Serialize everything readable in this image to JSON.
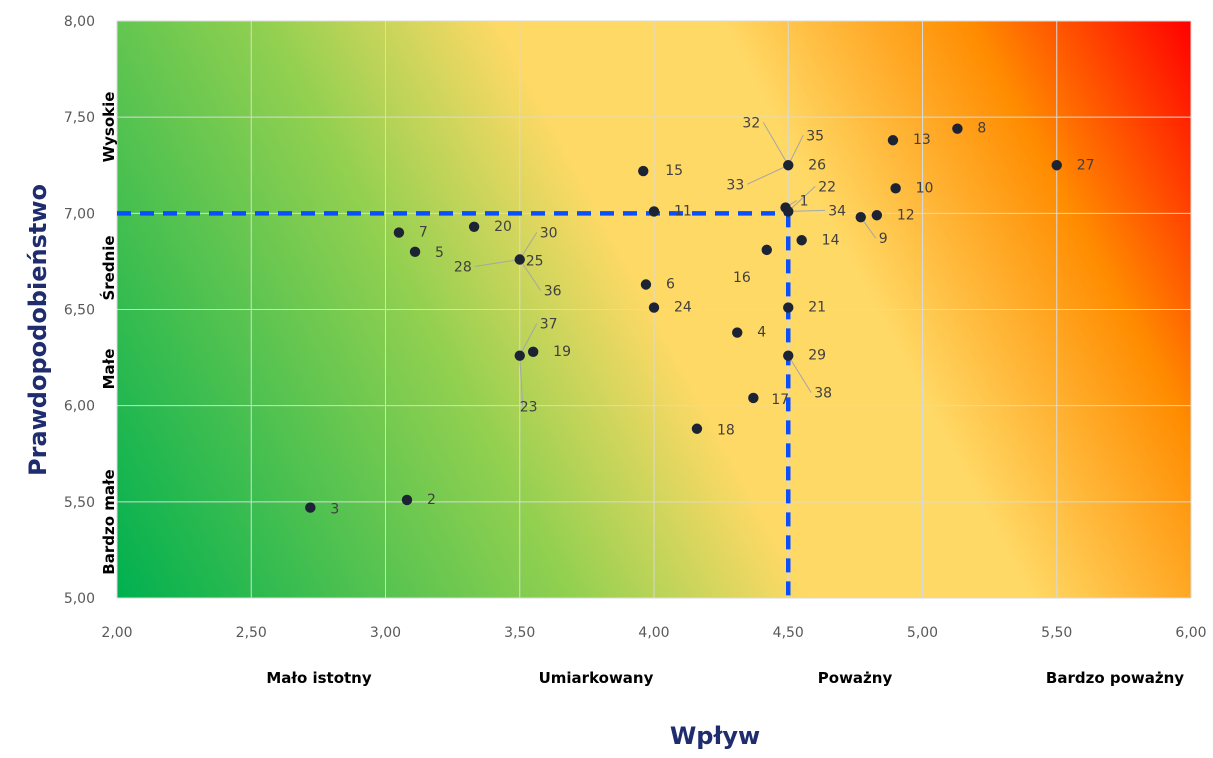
{
  "chart_data": {
    "type": "scatter",
    "xlim": [
      2.0,
      6.0
    ],
    "ylim": [
      5.0,
      8.0
    ],
    "x_ticks": [
      "2,00",
      "2,50",
      "3,00",
      "3,50",
      "4,00",
      "4,50",
      "5,00",
      "5,50",
      "6,00"
    ],
    "y_ticks": [
      "5,00",
      "5,50",
      "6,00",
      "6,50",
      "7,00",
      "7,50",
      "8,00"
    ],
    "xlabel": "Wpływ",
    "ylabel": "Prawdopodobieństwo",
    "x_categories": [
      "Mało istotny",
      "Umiarkowany",
      "Poważny",
      "Bardzo poważny"
    ],
    "y_categories": [
      "Bardzo małe",
      "Małe",
      "Średnie",
      "Wysokie"
    ],
    "grid": true,
    "thresholds": {
      "x": 4.5,
      "y": 7.0
    },
    "points": [
      {
        "label": "1",
        "x": 4.49,
        "y": 7.03
      },
      {
        "label": "2",
        "x": 3.08,
        "y": 5.51
      },
      {
        "label": "3",
        "x": 2.72,
        "y": 5.47
      },
      {
        "label": "4",
        "x": 4.31,
        "y": 6.38
      },
      {
        "label": "5",
        "x": 3.11,
        "y": 6.8
      },
      {
        "label": "6",
        "x": 3.97,
        "y": 6.63
      },
      {
        "label": "7",
        "x": 3.05,
        "y": 6.9
      },
      {
        "label": "8",
        "x": 5.13,
        "y": 7.44
      },
      {
        "label": "9",
        "x": 4.77,
        "y": 6.98
      },
      {
        "label": "10",
        "x": 4.9,
        "y": 7.13
      },
      {
        "label": "11",
        "x": 4.0,
        "y": 7.01
      },
      {
        "label": "12",
        "x": 4.83,
        "y": 6.99
      },
      {
        "label": "13",
        "x": 4.89,
        "y": 7.38
      },
      {
        "label": "14",
        "x": 4.55,
        "y": 6.86
      },
      {
        "label": "15",
        "x": 3.96,
        "y": 7.22
      },
      {
        "label": "16",
        "x": 4.42,
        "y": 6.81
      },
      {
        "label": "17",
        "x": 4.37,
        "y": 6.04
      },
      {
        "label": "18",
        "x": 4.16,
        "y": 5.88
      },
      {
        "label": "19",
        "x": 3.55,
        "y": 6.28
      },
      {
        "label": "20",
        "x": 3.33,
        "y": 6.93
      },
      {
        "label": "21",
        "x": 4.5,
        "y": 6.51
      },
      {
        "label": "22",
        "x": 4.5,
        "y": 7.01
      },
      {
        "label": "23",
        "x": 3.5,
        "y": 6.26
      },
      {
        "label": "24",
        "x": 4.0,
        "y": 6.51
      },
      {
        "label": "25",
        "x": 3.5,
        "y": 6.76
      },
      {
        "label": "26",
        "x": 4.5,
        "y": 7.25
      },
      {
        "label": "27",
        "x": 5.5,
        "y": 7.25
      },
      {
        "label": "28",
        "x": 3.5,
        "y": 6.76
      },
      {
        "label": "29",
        "x": 4.5,
        "y": 6.26
      },
      {
        "label": "30",
        "x": 3.5,
        "y": 6.76
      },
      {
        "label": "32",
        "x": 4.5,
        "y": 7.25
      },
      {
        "label": "33",
        "x": 4.5,
        "y": 7.25
      },
      {
        "label": "34",
        "x": 4.5,
        "y": 7.01
      },
      {
        "label": "35",
        "x": 4.5,
        "y": 7.25
      },
      {
        "label": "36",
        "x": 3.5,
        "y": 6.76
      },
      {
        "label": "37",
        "x": 3.5,
        "y": 6.26
      },
      {
        "label": "38",
        "x": 4.5,
        "y": 6.26
      }
    ],
    "colors": {
      "gradient_low": "#00b050",
      "gradient_mid_1": "#92d050",
      "gradient_mid_2": "#ffd966",
      "gradient_high_1": "#ff8c00",
      "gradient_high": "#ff0000",
      "point": "#1c2333",
      "threshold_line": "#0a4fff",
      "axis_title": "#1f2d6e",
      "grid": "#d9d9d9"
    }
  }
}
